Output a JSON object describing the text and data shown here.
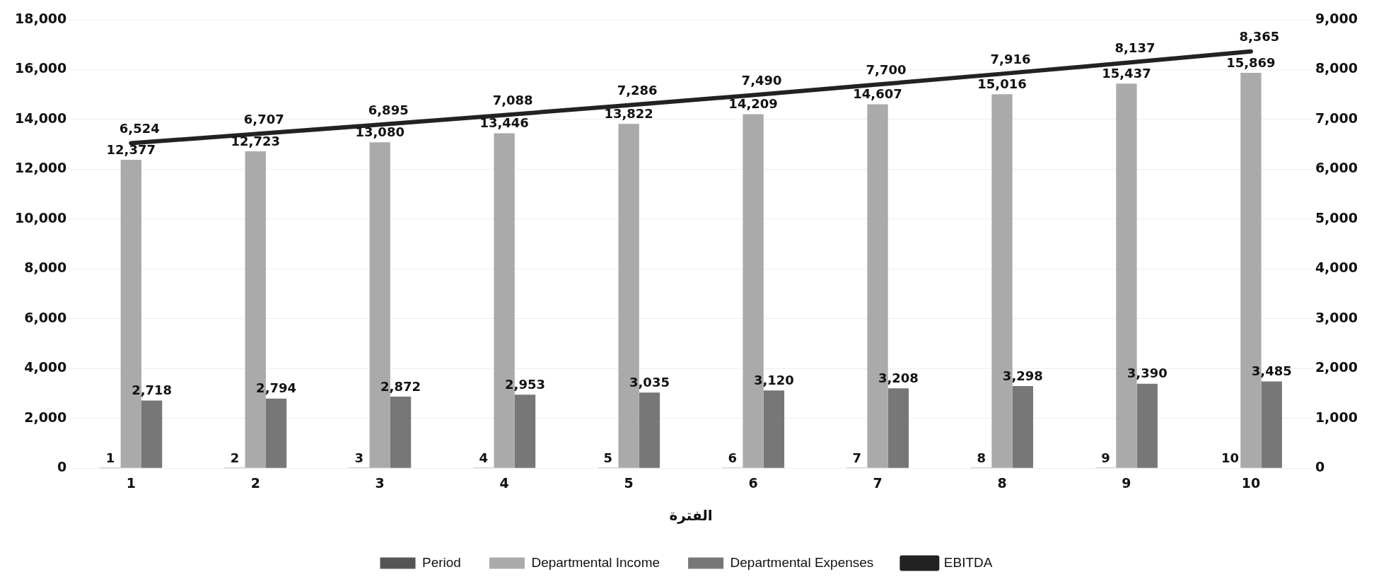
{
  "chart_data": {
    "type": "bar",
    "xlabel": "الفترة",
    "categories": [
      "1",
      "2",
      "3",
      "4",
      "5",
      "6",
      "7",
      "8",
      "9",
      "10"
    ],
    "series": [
      {
        "name": "Period",
        "color": "#555555",
        "values": [
          1,
          2,
          3,
          4,
          5,
          6,
          7,
          8,
          9,
          10
        ],
        "value_labels": [
          "1",
          "2",
          "3",
          "4",
          "5",
          "6",
          "7",
          "8",
          "9",
          "10"
        ]
      },
      {
        "name": "Departmental Income",
        "color": "#aaaaaa",
        "values": [
          12377,
          12723,
          13080,
          13446,
          13822,
          14209,
          14607,
          15016,
          15437,
          15869
        ],
        "value_labels": [
          "12,377",
          "12,723",
          "13,080",
          "13,446",
          "13,822",
          "14,209",
          "14,607",
          "15,016",
          "15,437",
          "15,869"
        ]
      },
      {
        "name": "Departmental Expenses",
        "color": "#777777",
        "values": [
          2718,
          2794,
          2872,
          2953,
          3035,
          3120,
          3208,
          3298,
          3390,
          3485
        ],
        "value_labels": [
          "2,718",
          "2,794",
          "2,872",
          "2,953",
          "3,035",
          "3,120",
          "3,208",
          "3,298",
          "3,390",
          "3,485"
        ]
      },
      {
        "name": "EBITDA",
        "type": "line",
        "axis": "y2",
        "color": "#222222",
        "values": [
          6524,
          6707,
          6895,
          7088,
          7286,
          7490,
          7700,
          7916,
          8137,
          8365
        ],
        "value_labels": [
          "6,524",
          "6,707",
          "6,895",
          "7,088",
          "7,286",
          "7,490",
          "7,700",
          "7,916",
          "8,137",
          "8,365"
        ]
      }
    ],
    "ylim": [
      0,
      18000
    ],
    "yticks": [
      0,
      {
        "value": 2000,
        "label": "2,000"
      },
      {
        "value": 4000,
        "label": "4,000"
      },
      {
        "value": 6000,
        "label": "6,000"
      },
      {
        "value": 8000,
        "label": "8,000"
      },
      {
        "value": 10000,
        "label": "10,000"
      },
      {
        "value": 12000,
        "label": "12,000"
      },
      {
        "value": 14000,
        "label": "14,000"
      },
      {
        "value": 16000,
        "label": "16,000"
      },
      {
        "value": 18000,
        "label": "18,000"
      }
    ],
    "y2lim": [
      0,
      9000
    ],
    "y2ticks": [
      0,
      {
        "value": 1000,
        "label": "1,000"
      },
      {
        "value": 2000,
        "label": "2,000"
      },
      {
        "value": 3000,
        "label": "3,000"
      },
      {
        "value": 4000,
        "label": "4,000"
      },
      {
        "value": 5000,
        "label": "5,000"
      },
      {
        "value": 6000,
        "label": "6,000"
      },
      {
        "value": 7000,
        "label": "7,000"
      },
      {
        "value": 8000,
        "label": "8,000"
      },
      {
        "value": 9000,
        "label": "9,000"
      }
    ],
    "grid": "y",
    "legend": "bottom",
    "marker": "none"
  }
}
